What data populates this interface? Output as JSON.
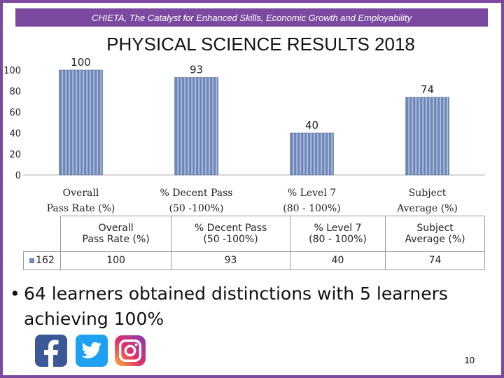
{
  "header": {
    "banner_text": "CHIETA, The Catalyst for Enhanced Skills, Economic Growth and Employability"
  },
  "chart_data": {
    "type": "bar",
    "title": "PHYSICAL SCIENCE RESULTS 2018",
    "categories": [
      "Overall Pass Rate (%)",
      "% Decent Pass (50 -100%)",
      "% Level 7 (80 - 100%)",
      "Subject Average (%)"
    ],
    "category_lines": [
      [
        "Overall",
        "Pass Rate (%)"
      ],
      [
        "% Decent Pass",
        "(50 -100%)"
      ],
      [
        "% Level 7",
        "(80 - 100%)"
      ],
      [
        "Subject",
        "Average (%)"
      ]
    ],
    "series": [
      {
        "name": "162",
        "values": [
          100,
          93,
          40,
          74
        ]
      }
    ],
    "data_labels": [
      "100",
      "93",
      "40",
      "74"
    ],
    "ylim": [
      0,
      100
    ],
    "yticks": [
      0,
      20,
      40,
      60,
      80,
      100
    ],
    "bar_color": "#6e86b8",
    "grid": false
  },
  "table": {
    "columns": [
      [
        "Overall",
        "Pass Rate (%)"
      ],
      [
        "% Decent Pass",
        "(50 -100%)"
      ],
      [
        "% Level 7",
        "(80 - 100%)"
      ],
      [
        "Subject",
        "Average (%)"
      ]
    ],
    "row_label": "162",
    "row_values": [
      "100",
      "93",
      "40",
      "74"
    ]
  },
  "bullet": {
    "text": "64 learners obtained distinctions with 5 learners achieving 100%"
  },
  "social": [
    "facebook-icon",
    "twitter-icon",
    "instagram-icon"
  ],
  "page_number": "10"
}
